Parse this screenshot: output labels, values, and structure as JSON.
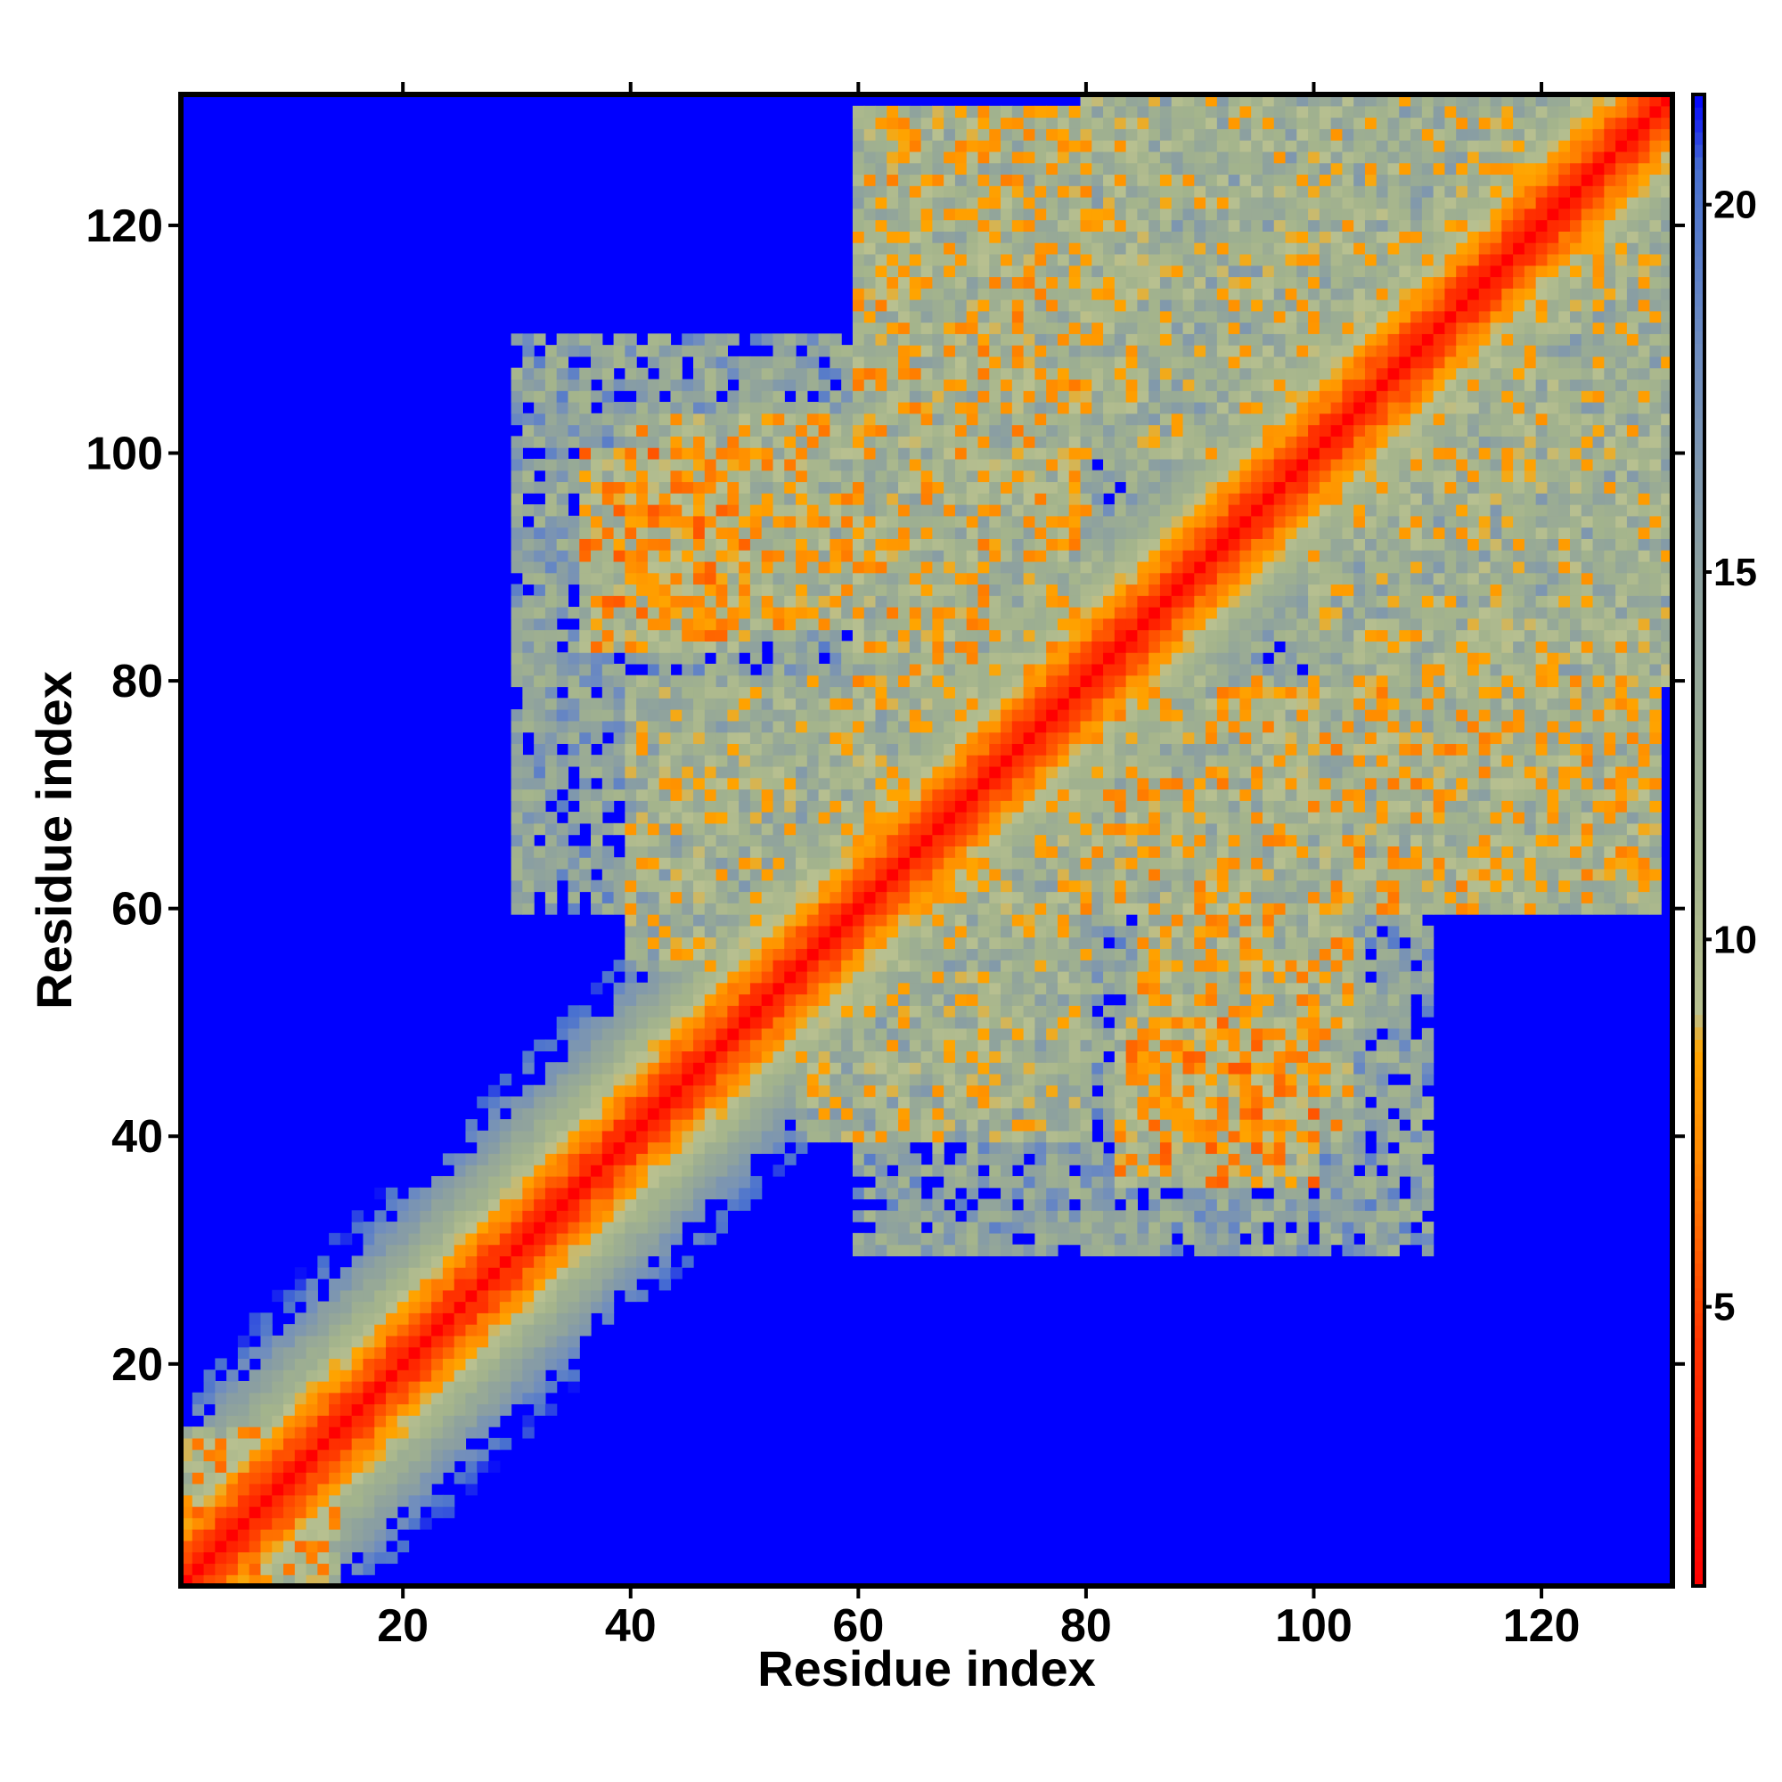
{
  "chart_data": {
    "type": "heatmap",
    "title": "",
    "xlabel": "Residue index",
    "ylabel": "Residue index",
    "n_residues": 131,
    "xlim": [
      1,
      131
    ],
    "ylim": [
      1,
      131
    ],
    "x_ticks": [
      20,
      40,
      60,
      80,
      100,
      120
    ],
    "y_ticks": [
      20,
      40,
      60,
      80,
      100,
      120
    ],
    "x_tick_labels": [
      "20",
      "40",
      "60",
      "80",
      "100",
      "120"
    ],
    "y_tick_labels": [
      "20",
      "40",
      "60",
      "80",
      "100",
      "120"
    ],
    "colorbar": {
      "range": [
        1.2,
        21.5
      ],
      "ticks": [
        5,
        10,
        15,
        20
      ],
      "tick_labels": [
        "5",
        "10",
        "15",
        "20"
      ],
      "colors": [
        {
          "value": 1.2,
          "color": "#ff0000"
        },
        {
          "value": 4.5,
          "color": "#ff3300"
        },
        {
          "value": 7.0,
          "color": "#ff8800"
        },
        {
          "value": 8.5,
          "color": "#ffa500"
        },
        {
          "value": 9.0,
          "color": "#b8c090"
        },
        {
          "value": 11.0,
          "color": "#a4b48c"
        },
        {
          "value": 15.0,
          "color": "#8ca0a0"
        },
        {
          "value": 18.0,
          "color": "#6e8cc0"
        },
        {
          "value": 20.5,
          "color": "#4870d0"
        },
        {
          "value": 21.5,
          "color": "#0000ff"
        }
      ],
      "background_color": "#0000ff"
    },
    "legend": "colorbar-right",
    "grid": false,
    "diagonal": {
      "zero_distance_color": "#ff0000"
    },
    "contact_regions": [
      {
        "i": [
          1,
          14
        ],
        "j": [
          1,
          14
        ],
        "level": 7
      },
      {
        "i": [
          36,
          50
        ],
        "j": [
          83,
          100
        ],
        "level": 7
      },
      {
        "i": [
          60,
          80
        ],
        "j": [
          80,
          130
        ],
        "level": 8
      },
      {
        "i": [
          85,
          103
        ],
        "j": [
          40,
          60
        ],
        "level": 8
      },
      {
        "i": [
          40,
          80
        ],
        "j": [
          55,
          80
        ],
        "level": 9
      },
      {
        "i": [
          100,
          131
        ],
        "j": [
          80,
          131
        ],
        "level": 9
      },
      {
        "i": [
          30,
          60
        ],
        "j": [
          60,
          110
        ],
        "level": 12
      },
      {
        "i": [
          60,
          130
        ],
        "j": [
          60,
          110
        ],
        "level": 12
      }
    ]
  }
}
